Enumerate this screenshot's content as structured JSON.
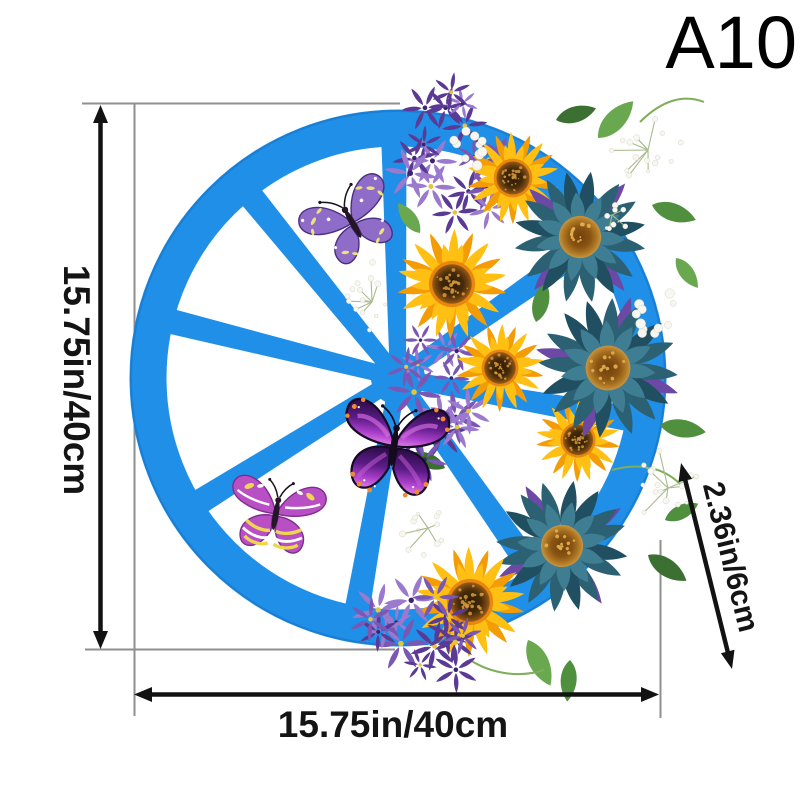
{
  "product_label": "A10",
  "annotations": {
    "height_label": "15.75in/40cm",
    "width_label": "15.75in/40cm",
    "depth_label": "2.36in/6cm"
  },
  "colors": {
    "background": "#ffffff",
    "wheel_blue": "#1f8fe8",
    "dim_line": "#121212",
    "ext_line": "#8f8f8f",
    "label_text": "#141414",
    "sunflower_yellow": "#ffc013",
    "sunflower_deep": "#f39c06",
    "sunflower_ring": "#e8860d",
    "teal_petal": "#2c6173",
    "teal_petal_light": "#3f7e92",
    "purple_flower": "#7b57b4",
    "accent_purple": "#6b49a4",
    "butterfly_violet": "#8f6cc8",
    "butterfly_magenta": "#b84fc4",
    "leaf_green": "#4f8f3e",
    "white_flower": "#f7f6f0"
  }
}
